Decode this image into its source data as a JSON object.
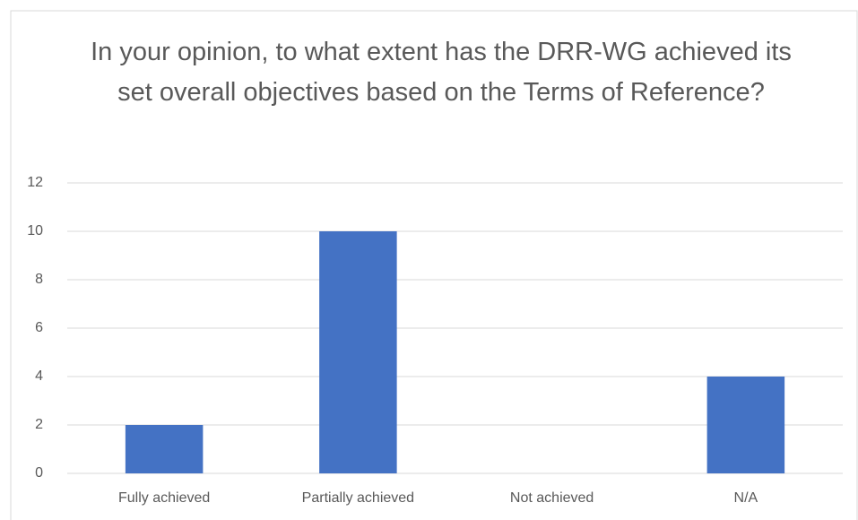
{
  "chart_data": {
    "type": "bar",
    "title": "In your opinion, to what extent has the DRR-WG achieved its set overall objectives based on the Terms of Reference?",
    "categories": [
      "Fully achieved",
      "Partially achieved",
      "Not achieved",
      "N/A"
    ],
    "values": [
      2,
      10,
      0,
      4
    ],
    "color": "#4472c4",
    "ylim": [
      0,
      12
    ],
    "yticks": [
      0,
      2,
      4,
      6,
      8,
      10,
      12
    ],
    "grid": true
  }
}
